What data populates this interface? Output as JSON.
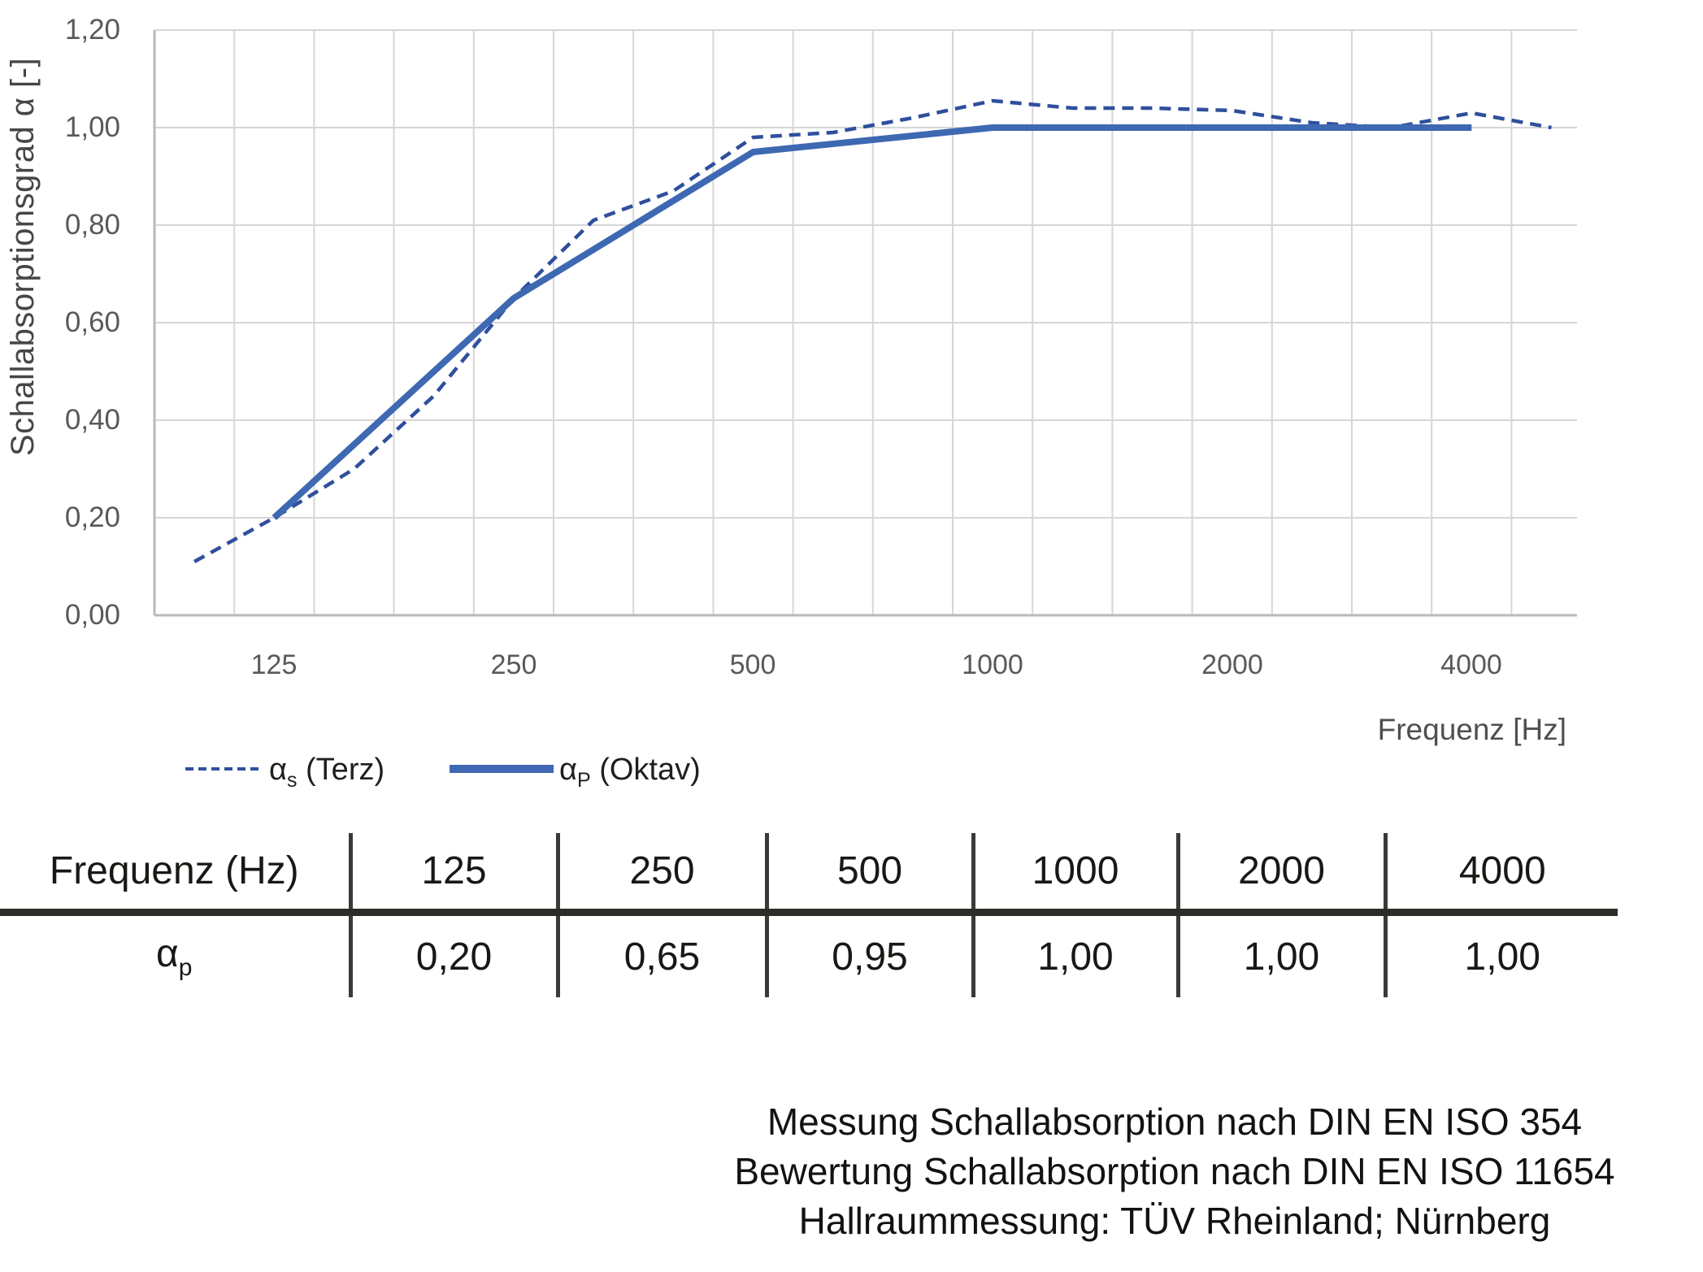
{
  "chart": {
    "y_axis_title": "Schallabsorptionsgrad α [-]",
    "x_axis_title": "Frequenz [Hz]",
    "y_ticks": [
      "1,20",
      "1,00",
      "0,80",
      "0,60",
      "0,40",
      "0,20",
      "0,00"
    ],
    "x_ticks": [
      "125",
      "250",
      "500",
      "1000",
      "2000",
      "4000"
    ],
    "colors": {
      "terz_line": "#2f4f9d",
      "oktav_line": "#3e68b2",
      "gridline": "#d6d6d6",
      "axis_line": "#b9b9b9",
      "tick_text": "#595959"
    },
    "legend": {
      "terz": {
        "alpha": "α",
        "sub": "s",
        "rest": " (Terz)"
      },
      "oktav": {
        "alpha": "α",
        "sub": "P",
        "rest": " (Oktav)"
      }
    }
  },
  "chart_data": {
    "type": "line",
    "title": "",
    "xlabel": "Frequenz [Hz]",
    "ylabel": "Schallabsorptionsgrad α [-]",
    "x_scale": "third-octave-band categories",
    "x_tick_labels": [
      125,
      250,
      500,
      1000,
      2000,
      4000
    ],
    "ylim": [
      0.0,
      1.2
    ],
    "y_tick_step": 0.2,
    "grid": true,
    "legend_position": "bottom-left",
    "series": [
      {
        "name": "αs (Terz)",
        "style": "dashed",
        "color": "#2f4f9d",
        "x": [
          100,
          125,
          160,
          200,
          250,
          315,
          400,
          500,
          630,
          800,
          1000,
          1250,
          1600,
          2000,
          2500,
          3150,
          4000,
          5000
        ],
        "values": [
          0.11,
          0.2,
          0.3,
          0.45,
          0.65,
          0.81,
          0.87,
          0.98,
          0.99,
          1.02,
          1.055,
          1.04,
          1.04,
          1.035,
          1.01,
          1.0,
          1.03,
          1.0
        ]
      },
      {
        "name": "αP (Oktav)",
        "style": "solid",
        "color": "#3e68b2",
        "x": [
          125,
          250,
          500,
          1000,
          2000,
          4000
        ],
        "values": [
          0.2,
          0.65,
          0.95,
          1.0,
          1.0,
          1.0
        ]
      }
    ]
  },
  "table": {
    "header_label": "Frequenz (Hz)",
    "header_values": [
      "125",
      "250",
      "500",
      "1000",
      "2000",
      "4000"
    ],
    "row_label": {
      "alpha": "α",
      "sub": "p"
    },
    "row_values": [
      "0,20",
      "0,65",
      "0,95",
      "1,00",
      "1,00",
      "1,00"
    ]
  },
  "footer": {
    "lines": [
      "Messung Schallabsorption nach DIN EN ISO 354",
      "Bewertung Schallabsorption nach DIN EN ISO 11654",
      "Hallraummessung: TÜV Rheinland; Nürnberg"
    ]
  }
}
